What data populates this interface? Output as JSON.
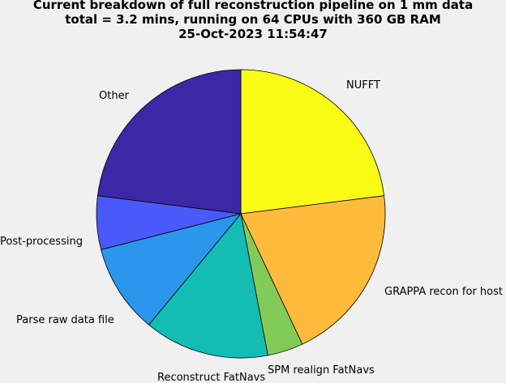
{
  "chart_data": {
    "type": "pie",
    "title": [
      "Current breakdown of full reconstruction pipeline on 1 mm data",
      "total = 3.2 mins, running on 64 CPUs with 360 GB RAM",
      "25-Oct-2023 11:54:47"
    ],
    "categories": [
      "NUFFT",
      "GRAPPA recon for host",
      "SPM realign FatNavs",
      "Reconstruct FatNavs",
      "Parse raw data file",
      "Post-processing",
      "Other"
    ],
    "values": [
      23.0,
      20.0,
      4.0,
      14.0,
      10.0,
      6.0,
      23.0
    ],
    "colors": [
      "#f9fb15",
      "#fdba3b",
      "#81cc59",
      "#13bdb4",
      "#2c96ec",
      "#4a5afa",
      "#3c28a6"
    ],
    "start_angle_deg": 90,
    "direction": "clockwise",
    "legend": "none"
  }
}
